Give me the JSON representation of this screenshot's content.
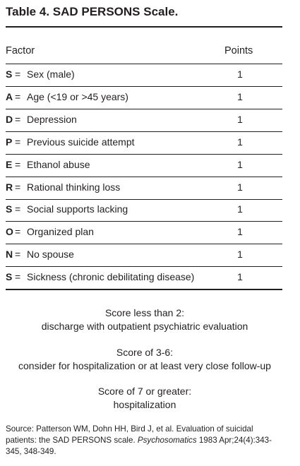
{
  "title": "Table 4. SAD PERSONS Scale.",
  "table": {
    "header": [
      "Factor",
      "Points"
    ],
    "separator": "=",
    "rows": [
      {
        "letter": "S",
        "factor": "Sex (male)",
        "points": 1
      },
      {
        "letter": "A",
        "factor": "Age (<19 or >45 years)",
        "points": 1
      },
      {
        "letter": "D",
        "factor": "Depression",
        "points": 1
      },
      {
        "letter": "P",
        "factor": "Previous suicide attempt",
        "points": 1
      },
      {
        "letter": "E",
        "factor": "Ethanol abuse",
        "points": 1
      },
      {
        "letter": "R",
        "factor": "Rational thinking loss",
        "points": 1
      },
      {
        "letter": "S",
        "factor": "Social supports lacking",
        "points": 1
      },
      {
        "letter": "O",
        "factor": "Organized plan",
        "points": 1
      },
      {
        "letter": "N",
        "factor": "No spouse",
        "points": 1
      },
      {
        "letter": "S",
        "factor": "Sickness (chronic debilitating disease)",
        "points": 1
      }
    ]
  },
  "notes": [
    [
      "Score less than 2:",
      "discharge with outpatient psychiatric evaluation"
    ],
    [
      "Score of 3-6:",
      "consider for hospitalization or at least very close follow-up"
    ],
    [
      "Score of 7 or greater:",
      "hospitalization"
    ]
  ],
  "source": {
    "before": "Source: Patterson WM, Dohn HH, Bird J, et al. Evaluation of suicidal patients: the SAD PERSONS scale. ",
    "journal": "Psychosomatics",
    "after": " 1983 Apr;24(4):343-345, 348-349."
  }
}
